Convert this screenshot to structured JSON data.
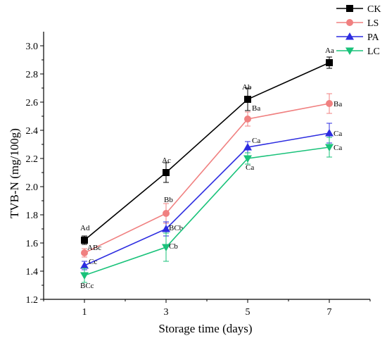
{
  "chart_data": {
    "type": "line",
    "xlabel": "Storage time (days)",
    "ylabel": "TVB-N (mg/100g)",
    "x": [
      1,
      3,
      5,
      7
    ],
    "xticks": [
      "1",
      "3",
      "5",
      "7"
    ],
    "ylim": [
      1.2,
      3.1
    ],
    "yticks": [
      "1.2",
      "1.4",
      "1.6",
      "1.8",
      "2.0",
      "2.2",
      "2.4",
      "2.6",
      "2.8",
      "3.0"
    ],
    "legend_position": "top-right",
    "grid": false,
    "series": [
      {
        "name": "CK",
        "color": "#000000",
        "marker": "square",
        "values": [
          1.62,
          2.1,
          2.62,
          2.88
        ],
        "errors": [
          0.03,
          0.07,
          0.08,
          0.04
        ],
        "labels": [
          "Ad",
          "Ac",
          "Ab",
          "Aa"
        ]
      },
      {
        "name": "LS",
        "color": "#f08080",
        "marker": "circle",
        "values": [
          1.53,
          1.81,
          2.48,
          2.59
        ],
        "errors": [
          0.03,
          0.07,
          0.05,
          0.07
        ],
        "labels": [
          "ABc",
          "Bb",
          "Ba",
          "Ba"
        ]
      },
      {
        "name": "PA",
        "color": "#2c2ce0",
        "marker": "triangle-up",
        "values": [
          1.44,
          1.7,
          2.28,
          2.38
        ],
        "errors": [
          0.03,
          0.05,
          0.04,
          0.07
        ],
        "labels": [
          "Cc",
          "BCb",
          "Ca",
          "Ca"
        ]
      },
      {
        "name": "LC",
        "color": "#19c27a",
        "marker": "triangle-down",
        "values": [
          1.37,
          1.57,
          2.2,
          2.28
        ],
        "errors": [
          0.05,
          0.1,
          0.04,
          0.07
        ],
        "labels": [
          "BCc",
          "Cb",
          "Ca",
          "Ca"
        ]
      }
    ]
  }
}
